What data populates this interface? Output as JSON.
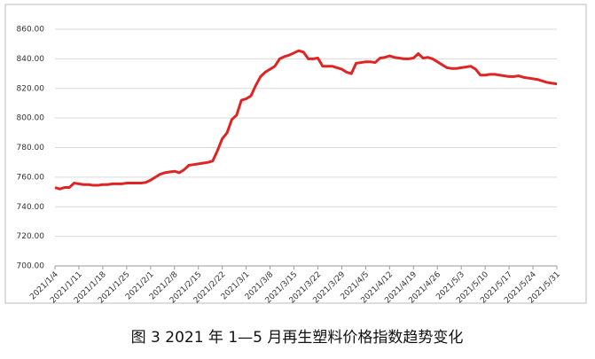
{
  "chart_data": {
    "type": "line",
    "caption": "图 3  2021 年 1—5 月再生塑料价格指数趋势变化",
    "categories": [
      "2021/1/4",
      null,
      null,
      null,
      null,
      "2021/1/11",
      null,
      null,
      null,
      null,
      "2021/1/18",
      null,
      null,
      null,
      null,
      "2021/1/25",
      null,
      null,
      null,
      null,
      "2021/2/1",
      null,
      null,
      null,
      null,
      "2021/2/8",
      null,
      null,
      null,
      null,
      "2021/2/15",
      null,
      null,
      null,
      null,
      "2021/2/22",
      null,
      null,
      null,
      null,
      "2021/3/1",
      null,
      null,
      null,
      null,
      "2021/3/8",
      null,
      null,
      null,
      null,
      "2021/3/15",
      null,
      null,
      null,
      null,
      "2021/3/22",
      null,
      null,
      null,
      null,
      "2021/3/29",
      null,
      null,
      null,
      null,
      "2021/4/5",
      null,
      null,
      null,
      null,
      "2021/4/12",
      null,
      null,
      null,
      null,
      "2021/4/19",
      null,
      null,
      null,
      null,
      "2021/4/26",
      null,
      null,
      null,
      null,
      "2021/5/3",
      null,
      null,
      null,
      null,
      "2021/5/10",
      null,
      null,
      null,
      null,
      "2021/5/17",
      null,
      null,
      null,
      null,
      "2021/5/24",
      null,
      null,
      null,
      null,
      "2021/5/31"
    ],
    "series": [
      {
        "name": "再生塑料价格指数",
        "color": "#e02424",
        "values": [
          753,
          752,
          753,
          753,
          756,
          755.5,
          755,
          755,
          754.5,
          754.5,
          755,
          755,
          755.5,
          755.5,
          755.5,
          756,
          756,
          756,
          756,
          756.5,
          758,
          760,
          762,
          763,
          763.5,
          764,
          763,
          765,
          768,
          768.5,
          769,
          769.5,
          770,
          771,
          778,
          786,
          790,
          799,
          802,
          812,
          813,
          815,
          822,
          828,
          831,
          833,
          835,
          840,
          841.5,
          842.5,
          844,
          845.5,
          844.5,
          840,
          840,
          840.5,
          835,
          835,
          835,
          834,
          833,
          831,
          830,
          837,
          837.5,
          838,
          838,
          837.5,
          840.5,
          841,
          842,
          841,
          840.5,
          840,
          840,
          840.5,
          843.5,
          840.5,
          841,
          840,
          838,
          836,
          834,
          833.5,
          833.5,
          834,
          834.5,
          835,
          833,
          829,
          829,
          829.5,
          829.5,
          829,
          828.5,
          828,
          828,
          828.5,
          827.5,
          827,
          826.5,
          826,
          825,
          824,
          823.5,
          823
        ]
      }
    ],
    "ylim": [
      700,
      860
    ],
    "yticks": [
      {
        "value": 700,
        "label": "700.00"
      },
      {
        "value": 720,
        "label": "720.00"
      },
      {
        "value": 740,
        "label": "740.00"
      },
      {
        "value": 760,
        "label": "760.00"
      },
      {
        "value": 780,
        "label": "780.00"
      },
      {
        "value": 800,
        "label": "800.00"
      },
      {
        "value": 820,
        "label": "820.00"
      },
      {
        "value": 840,
        "label": "840.00"
      },
      {
        "value": 860,
        "label": "860.00"
      }
    ],
    "grid": true
  }
}
